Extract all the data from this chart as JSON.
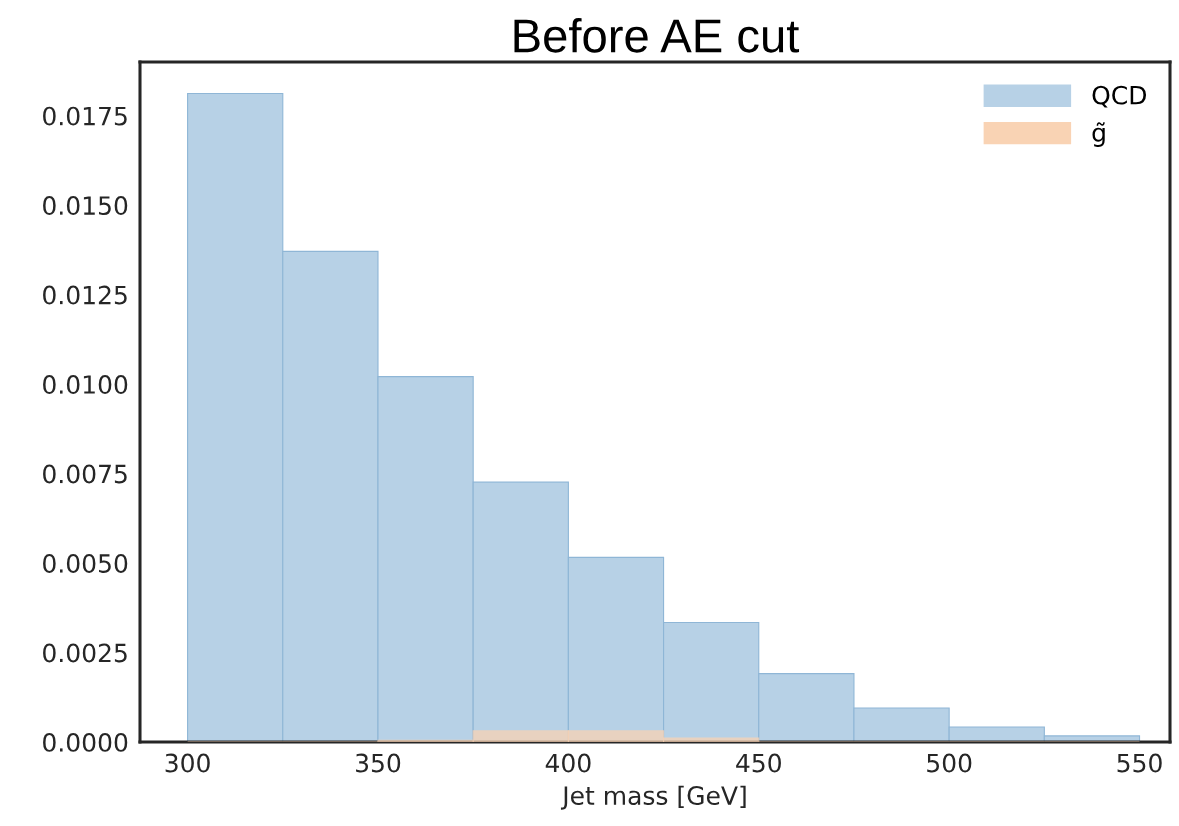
{
  "chart_data": {
    "type": "histogram",
    "title": "Before AE cut",
    "xlabel": "Jet mass [GeV]",
    "bins": [
      300,
      325,
      350,
      375,
      400,
      425,
      450,
      475,
      500,
      525,
      550
    ],
    "series": [
      {
        "name": "QCD",
        "color": "#b7d1e6",
        "values": [
          0.01812,
          0.01371,
          0.01021,
          0.00726,
          0.00516,
          0.00334,
          0.00191,
          0.00095,
          0.00042,
          0.00017
        ]
      },
      {
        "name": "g̃",
        "color": "#f9d3b4",
        "values": [
          0,
          0,
          5e-05,
          0.00031,
          0.00031,
          0.00011,
          0,
          0,
          0,
          0
        ]
      }
    ],
    "xlim": [
      287.5,
      558
    ],
    "ylim": [
      0,
      0.019
    ],
    "xticks": [
      300,
      350,
      400,
      450,
      500,
      550
    ],
    "yticks": [
      {
        "value": 0,
        "label": "0.0000"
      },
      {
        "value": 0.0025,
        "label": "0.0025"
      },
      {
        "value": 0.005,
        "label": "0.0050"
      },
      {
        "value": 0.0075,
        "label": "0.0075"
      },
      {
        "value": 0.01,
        "label": "0.0100"
      },
      {
        "value": 0.0125,
        "label": "0.0125"
      },
      {
        "value": 0.015,
        "label": "0.0150"
      },
      {
        "value": 0.0175,
        "label": "0.0175"
      }
    ],
    "grid": false,
    "legend": "top right"
  }
}
